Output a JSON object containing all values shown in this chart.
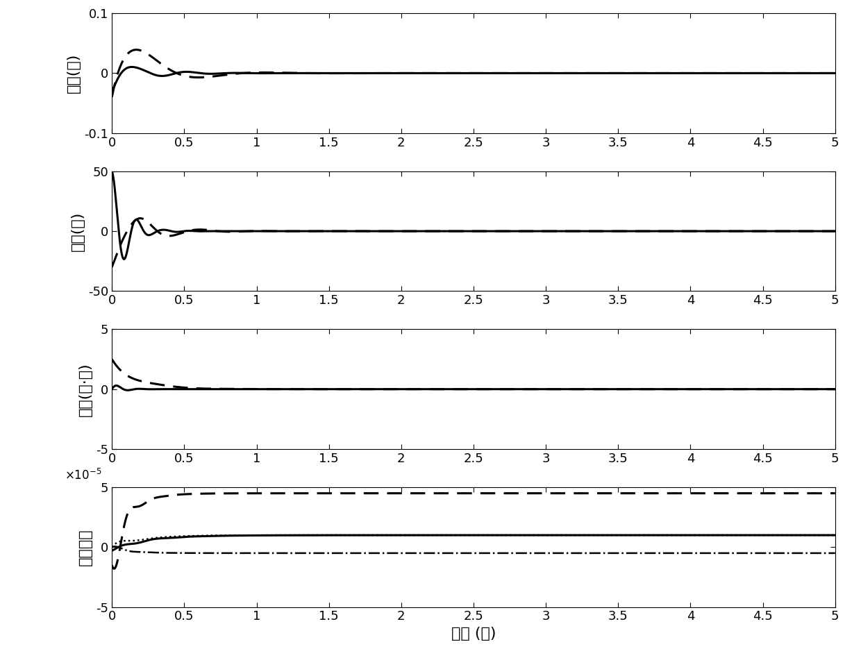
{
  "xlim": [
    0,
    5
  ],
  "xlabel": "时间 (秒)",
  "subplot1_ylabel": "位移(米)",
  "subplot1_ylim": [
    -0.1,
    0.1
  ],
  "subplot1_yticks": [
    -0.1,
    0,
    0.1
  ],
  "subplot1_yticklabels": [
    "-0.1",
    "0",
    "0.1"
  ],
  "subplot2_ylabel": "转角(度)",
  "subplot2_ylim": [
    -50,
    50
  ],
  "subplot2_yticks": [
    -50,
    0,
    50
  ],
  "subplot2_yticklabels": [
    "-50",
    "0",
    "50"
  ],
  "subplot3_ylabel": "转矩(牛·米)",
  "subplot3_ylim": [
    -5,
    5
  ],
  "subplot3_yticks": [
    -5,
    0,
    5
  ],
  "subplot3_yticklabels": [
    "-5",
    "0",
    "5"
  ],
  "subplot4_ylabel": "参数估计",
  "subplot4_ylim": [
    -5,
    5
  ],
  "subplot4_yticks": [
    -5,
    0,
    5
  ],
  "subplot4_yticklabels": [
    "-5",
    "0",
    "5"
  ],
  "xticks": [
    0,
    0.5,
    1,
    1.5,
    2,
    2.5,
    3,
    3.5,
    4,
    4.5,
    5
  ],
  "xticklabels": [
    "0",
    "0.5",
    "1",
    "1.5",
    "2",
    "2.5",
    "3",
    "3.5",
    "4",
    "4.5",
    "5"
  ],
  "background_color": "#ffffff",
  "line_color": "#000000"
}
